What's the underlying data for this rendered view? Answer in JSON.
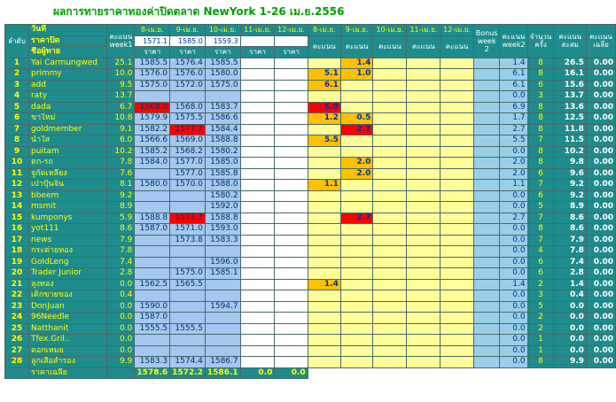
{
  "header": {
    "title": "ผลการทายราคาทองค่าปิดตลาด NewYork 1-26 เม.ย.2556",
    "order_label": "ลำดับ",
    "date_label": "วันที่",
    "close_label": "ราคาปิด",
    "name_label": "ชื่อผู้ทาย",
    "week1": "คะแนน week1",
    "price_dates": [
      "8-เม.ย.",
      "9-เม.ย.",
      "10-เม.ย.",
      "11-เม.ย.",
      "12-เม.ย."
    ],
    "close_prices": [
      "1571.1",
      "1585.0",
      "1559.3",
      null,
      null
    ],
    "price_label": "ราคา",
    "score_dates": [
      "8-เม.ย.",
      "9-เม.ย.",
      "10-เม.ย.",
      "11-เม.ย.",
      "12-เม.ย."
    ],
    "score_label": "คะแนน",
    "bonus": "Bonus week 2",
    "week2": "คะแนน week2",
    "count": "จำนวน ครั้ง",
    "total": "คะแนน สะสม",
    "avg": "คะแนน เฉลี่ย"
  },
  "rows": [
    {
      "cells": [
        "1",
        "Yai Carmungwed",
        "25.1",
        "1585.5",
        "1576.4",
        "1585.5",
        null,
        null,
        null,
        "1.4",
        null,
        null,
        null,
        null,
        "1.4",
        "8",
        "26.5",
        "0.00"
      ],
      "red": []
    },
    {
      "cells": [
        "2",
        "primmy",
        "10.0",
        "1576.0",
        "1576.0",
        "1580.0",
        null,
        null,
        "5.1",
        "1.0",
        null,
        null,
        null,
        null,
        "6.1",
        "8",
        "16.1",
        "0.00"
      ],
      "red": []
    },
    {
      "cells": [
        "3",
        "add",
        "9.5",
        "1575.0",
        "1572.0",
        "1575.0",
        null,
        null,
        "6.1",
        null,
        null,
        null,
        null,
        null,
        "6.1",
        "6",
        "15.6",
        "0.00"
      ],
      "red": []
    },
    {
      "cells": [
        "4",
        "raty",
        "13.7",
        null,
        null,
        null,
        null,
        null,
        null,
        null,
        null,
        null,
        null,
        null,
        "0.0",
        "3",
        "13.7",
        "0.00"
      ],
      "red": []
    },
    {
      "cells": [
        "5",
        "dada",
        "6.7",
        "1568.0",
        "1568.0",
        "1583.7",
        null,
        null,
        "6.9",
        null,
        null,
        null,
        null,
        null,
        "6.9",
        "8",
        "13.6",
        "0.00"
      ],
      "red": [
        3,
        8
      ]
    },
    {
      "cells": [
        "6",
        "ขาใหม่",
        "10.8",
        "1579.9",
        "1575.5",
        "1586.6",
        null,
        null,
        "1.2",
        "0.5",
        null,
        null,
        null,
        null,
        "1.7",
        "8",
        "12.5",
        "0.00"
      ],
      "red": []
    },
    {
      "cells": [
        "7",
        "goldmember",
        "9.1",
        "1582.2",
        "1577.7",
        "1584.4",
        null,
        null,
        null,
        "2.7",
        null,
        null,
        null,
        null,
        "2.7",
        "8",
        "11.8",
        "0.00"
      ],
      "red": [
        4,
        9
      ]
    },
    {
      "cells": [
        "8",
        "น้ำใส",
        "6.0",
        "1566.6",
        "1569.0",
        "1588.8",
        null,
        null,
        "5.5",
        null,
        null,
        null,
        null,
        null,
        "5.5",
        "7",
        "11.5",
        "0.00"
      ],
      "red": []
    },
    {
      "cells": [
        "9",
        "puitam",
        "10.2",
        "1585.2",
        "1568.2",
        "1580.2",
        null,
        null,
        null,
        null,
        null,
        null,
        null,
        null,
        "0.0",
        "8",
        "10.2",
        "0.00"
      ],
      "red": []
    },
    {
      "cells": [
        "10",
        "ตก-รถ",
        "7.8",
        "1584.0",
        "1577.0",
        "1585.0",
        null,
        null,
        null,
        "2.0",
        null,
        null,
        null,
        null,
        "2.0",
        "8",
        "9.8",
        "0.00"
      ],
      "red": []
    },
    {
      "cells": [
        "11",
        "จูกัดเหลียง",
        "7.6",
        null,
        "1577.0",
        "1585.8",
        null,
        null,
        null,
        "2.0",
        null,
        null,
        null,
        null,
        "2.0",
        "6",
        "9.6",
        "0.00"
      ],
      "red": []
    },
    {
      "cells": [
        "12",
        "เป่าปุ้นจิ้น",
        "8.1",
        "1580.0",
        "1570.0",
        "1588.0",
        null,
        null,
        "1.1",
        null,
        null,
        null,
        null,
        null,
        "1.1",
        "7",
        "9.2",
        "0.00"
      ],
      "red": []
    },
    {
      "cells": [
        "13",
        "bbeem",
        "9.2",
        null,
        null,
        "1580.2",
        null,
        null,
        null,
        null,
        null,
        null,
        null,
        null,
        "0.0",
        "6",
        "9.2",
        "0.00"
      ],
      "red": []
    },
    {
      "cells": [
        "14",
        "msmit",
        "8.9",
        null,
        null,
        "1592.0",
        null,
        null,
        null,
        null,
        null,
        null,
        null,
        null,
        "0.0",
        "5",
        "8.9",
        "0.00"
      ],
      "red": []
    },
    {
      "cells": [
        "15",
        "kumponys",
        "5.9",
        "1588.8",
        "1577.7",
        "1588.8",
        null,
        null,
        null,
        "2.7",
        null,
        null,
        null,
        null,
        "2.7",
        "7",
        "8.6",
        "0.00"
      ],
      "red": [
        4,
        9
      ]
    },
    {
      "cells": [
        "16",
        "yot111",
        "8.6",
        "1587.0",
        "1571.0",
        "1593.0",
        null,
        null,
        null,
        null,
        null,
        null,
        null,
        null,
        "0.0",
        "8",
        "8.6",
        "0.00"
      ],
      "red": []
    },
    {
      "cells": [
        "17",
        "news",
        "7.9",
        null,
        "1573.8",
        "1583.3",
        null,
        null,
        null,
        null,
        null,
        null,
        null,
        null,
        "0.0",
        "7",
        "7.9",
        "0.00"
      ],
      "red": []
    },
    {
      "cells": [
        "18",
        "กระต่ายทอง",
        "7.8",
        null,
        null,
        null,
        null,
        null,
        null,
        null,
        null,
        null,
        null,
        null,
        "0.0",
        "4",
        "7.8",
        "0.00"
      ],
      "red": []
    },
    {
      "cells": [
        "19",
        "GoldLeng",
        "7.4",
        null,
        null,
        "1596.0",
        null,
        null,
        null,
        null,
        null,
        null,
        null,
        null,
        "0.0",
        "6",
        "7.4",
        "0.00"
      ],
      "red": []
    },
    {
      "cells": [
        "20",
        "Trader Junior",
        "2.8",
        null,
        "1575.0",
        "1585.1",
        null,
        null,
        null,
        null,
        null,
        null,
        null,
        null,
        "0.0",
        "6",
        "2.8",
        "0.00"
      ],
      "red": []
    },
    {
      "cells": [
        "21",
        "ลุงทอง",
        "0.0",
        "1562.5",
        "1565.5",
        null,
        null,
        null,
        "1.4",
        null,
        null,
        null,
        null,
        null,
        "1.4",
        "2",
        "1.4",
        "0.00"
      ],
      "red": []
    },
    {
      "cells": [
        "22",
        "เด็กขายของ",
        "0.4",
        null,
        null,
        null,
        null,
        null,
        null,
        null,
        null,
        null,
        null,
        null,
        "0.0",
        "3",
        "0.4",
        "0.00"
      ],
      "red": []
    },
    {
      "cells": [
        "23",
        "DonJuan",
        "0.0",
        "1590.0",
        null,
        "1594.7",
        null,
        null,
        null,
        null,
        null,
        null,
        null,
        null,
        "0.0",
        "5",
        "0.0",
        "0.00"
      ],
      "red": []
    },
    {
      "cells": [
        "24",
        "96Needle",
        "0.0",
        "1587.0",
        null,
        null,
        null,
        null,
        null,
        null,
        null,
        null,
        null,
        null,
        "0.0",
        "2",
        "0.0",
        "0.00"
      ],
      "red": []
    },
    {
      "cells": [
        "25",
        "Natthanit",
        "0.0",
        "1555.5",
        "1555.5",
        null,
        null,
        null,
        null,
        null,
        null,
        null,
        null,
        null,
        "0.0",
        "2",
        "0.0",
        "0.00"
      ],
      "red": []
    },
    {
      "cells": [
        "26",
        "Tfex.Gril..",
        "0.0",
        null,
        null,
        null,
        null,
        null,
        null,
        null,
        null,
        null,
        null,
        null,
        "0.0",
        "1",
        "0.0",
        "0.00"
      ],
      "red": []
    },
    {
      "cells": [
        "27",
        "ดอกเหมย",
        "0.0",
        null,
        null,
        null,
        null,
        null,
        null,
        null,
        null,
        null,
        null,
        null,
        "0.0",
        "1",
        "0.0",
        "0.00"
      ],
      "red": []
    },
    {
      "cells": [
        "28",
        "ลูกเสือสำรอง",
        "9.9",
        "1583.3",
        "1574.4",
        "1586.7",
        null,
        null,
        null,
        null,
        null,
        null,
        null,
        null,
        "0.0",
        "8",
        "9.9",
        "0.00"
      ],
      "red": []
    }
  ],
  "footer": {
    "label": "ราคาเฉลี่ย",
    "values": [
      "1578.6",
      "1572.2",
      "1586.1",
      "0.0",
      "0.0"
    ]
  }
}
